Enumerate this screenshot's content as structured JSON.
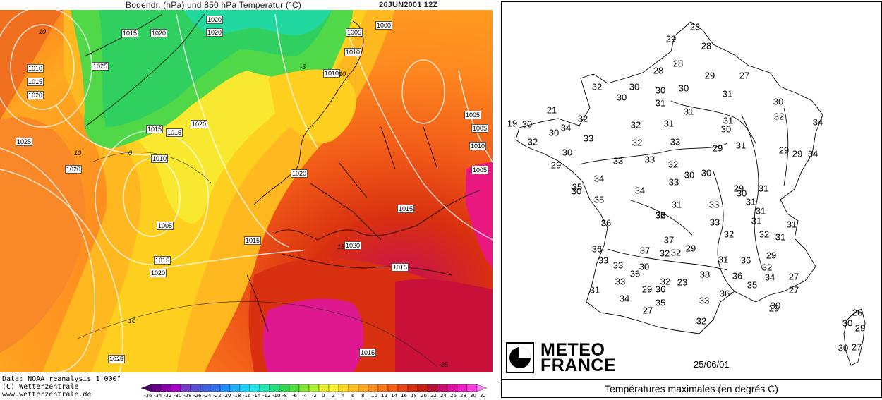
{
  "left_map": {
    "title": "Bodendr. (hPa) und 850 hPa Temperatur (°C)",
    "date": "26JUN2001 12Z",
    "footer": [
      "Data: NOAA reanalysis 1.000°",
      "(C) Wetterzentrale",
      "www.wetterzentrale.de"
    ],
    "colorbar_labels": [
      "-36",
      "-34",
      "-32",
      "-30",
      "-28",
      "-26",
      "-24",
      "-22",
      "-20",
      "-18",
      "-16",
      "-14",
      "-12",
      "-10",
      "-8",
      "-6",
      "-4",
      "-2",
      "0",
      "2",
      "4",
      "6",
      "8",
      "10",
      "12",
      "14",
      "16",
      "18",
      "20",
      "22",
      "24",
      "26",
      "28",
      "30",
      "32"
    ],
    "colorbar_colors": [
      "#4b0068",
      "#6a0088",
      "#8a00a8",
      "#a800c8",
      "#7a3cc8",
      "#5a50d8",
      "#4060e0",
      "#3070f0",
      "#2090ff",
      "#20b0ff",
      "#20d0ff",
      "#20e8e8",
      "#20e8b0",
      "#20e080",
      "#30d850",
      "#50e040",
      "#80e830",
      "#b0f030",
      "#e8f030",
      "#fff030",
      "#ffd820",
      "#ffc020",
      "#ffa820",
      "#ff9020",
      "#ff7818",
      "#f86018",
      "#e84818",
      "#d83010",
      "#c82010",
      "#b81030",
      "#c81070",
      "#e010a0",
      "#f020c8",
      "#ff40e0",
      "#ff80f0"
    ],
    "isobar_labels": [
      "1015",
      "1020",
      "1020",
      "1020",
      "1005",
      "1000",
      "1010",
      "1010",
      "1015",
      "1020",
      "1025",
      "1015",
      "1015",
      "1020",
      "1025",
      "1020",
      "1010",
      "1005",
      "1020",
      "1015",
      "1015",
      "1015",
      "1020",
      "1015",
      "1005",
      "1010",
      "1005",
      "1020",
      "1025",
      "1015",
      "1010",
      "1005"
    ],
    "isotherm_labels": [
      "10",
      "-5",
      "10",
      "0",
      "10",
      "10",
      "15",
      "-25"
    ]
  },
  "right_map": {
    "temperatures": [
      "23",
      "29",
      "28",
      "28",
      "28",
      "29",
      "27",
      "32",
      "30",
      "30",
      "30",
      "30",
      "31",
      "31",
      "30",
      "32",
      "31",
      "21",
      "32",
      "19",
      "30",
      "32",
      "34",
      "30",
      "32",
      "31",
      "31",
      "30",
      "34",
      "33",
      "32",
      "33",
      "31",
      "29",
      "30",
      "29",
      "29",
      "29",
      "34",
      "33",
      "33",
      "32",
      "30",
      "30",
      "34",
      "35",
      "34",
      "33",
      "33",
      "29",
      "31",
      "30",
      "35",
      "32",
      "31",
      "31",
      "30",
      "31",
      "31",
      "32",
      "36",
      "37",
      "31",
      "32",
      "31",
      "33",
      "36",
      "32",
      "36",
      "37",
      "32",
      "29",
      "29",
      "36",
      "31",
      "33",
      "33",
      "30",
      "36",
      "38",
      "36",
      "35",
      "32",
      "27",
      "33",
      "36",
      "29",
      "32",
      "23",
      "34",
      "36",
      "33",
      "27",
      "31",
      "34",
      "35",
      "32",
      "30",
      "27",
      "29",
      "26",
      "30",
      "29",
      "27",
      "30"
    ],
    "logo": [
      "METEO",
      "FRANCE"
    ],
    "date": "25/06/01",
    "caption": "Températures maximales (en degrés C)"
  }
}
